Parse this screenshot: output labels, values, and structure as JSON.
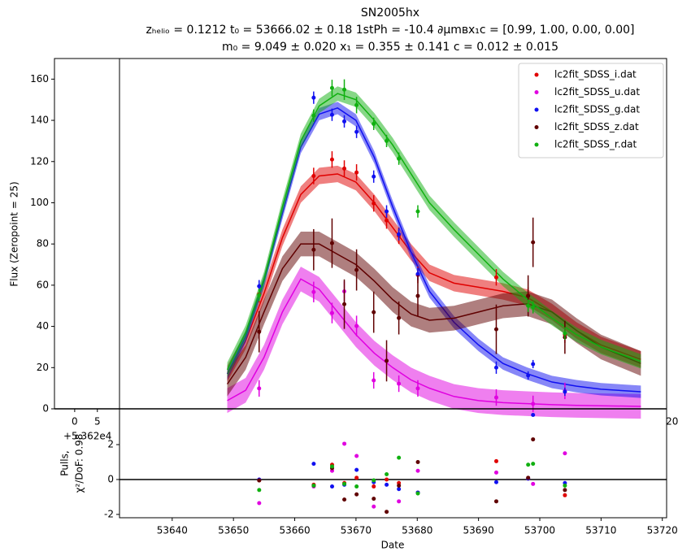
{
  "chart_data": [
    {
      "type": "errorbar",
      "title": "SN2005hx",
      "subtitle": [
        "zₕₑₗᵢₒ = 0.1212 t₀ = 53666.02 ± 0.18 1stPh = -10.4 ∂μmʙx₁c = [0.99,  1.00,  0.00,  0.00]",
        "m₀ = 9.049 ± 0.020 x₁ = 0.355 ± 0.141 c = 0.012 ± 0.015"
      ],
      "ylabel": "Flux (Zeropoint = 25)",
      "xlim": [
        53620.8,
        53720.7
      ],
      "ylim": [
        0,
        170
      ],
      "yticks": [
        0,
        20,
        40,
        60,
        80,
        100,
        120,
        140,
        160
      ],
      "xticks": [
        {
          "value": 53624.1,
          "label": "0"
        },
        {
          "value": 53627.8,
          "label": "5"
        },
        {
          "value": 53721.6,
          "label": "20"
        }
      ],
      "x_offset_label": "+5.362e4",
      "legend": "upper right",
      "model_x": [
        53649,
        53652,
        53655,
        53658,
        53661,
        53664,
        53667,
        53670,
        53673,
        53676,
        53679,
        53682,
        53686,
        53690,
        53694,
        53698,
        53702,
        53706,
        53710,
        53716.5
      ],
      "series": [
        {
          "name": "lc2fit_SDSS_i.dat",
          "color": "#e00000",
          "x": [
            53654.2,
            53663.1,
            53666.1,
            53668.1,
            53670.1,
            53672.9,
            53675.0,
            53677.0,
            53680.1,
            53692.9,
            53698.1,
            53704.1
          ],
          "values": [
            55.6,
            113,
            121,
            116.6,
            114.7,
            99.7,
            91.4,
            84,
            65,
            63.8,
            55,
            36
          ],
          "errors": [
            4,
            4,
            4,
            4,
            4,
            4,
            4,
            4,
            4,
            4,
            4,
            4
          ],
          "model": [
            17,
            33,
            56,
            83,
            104,
            113,
            114,
            110,
            100,
            88,
            76,
            66,
            61,
            59,
            57,
            54,
            47,
            38,
            31,
            24
          ],
          "band": 4
        },
        {
          "name": "lc2fit_SDSS_u.dat",
          "color": "#e000e0",
          "x": [
            53654.2,
            53663.1,
            53666.1,
            53668.1,
            53670.1,
            53672.9,
            53677.0,
            53680.1,
            53692.9,
            53698.9,
            53704.1
          ],
          "values": [
            9.9,
            56.7,
            46.5,
            57,
            40.2,
            13.8,
            12.2,
            9.9,
            5.5,
            2.4,
            8.7
          ],
          "errors": [
            4,
            5,
            5,
            5,
            5,
            4,
            4,
            4,
            4,
            4,
            4
          ],
          "model": [
            4,
            9,
            25,
            47,
            63,
            58,
            47,
            36,
            27,
            20,
            14,
            10,
            6,
            4,
            3,
            2.5,
            2,
            1.7,
            1.5,
            1.2
          ],
          "band": 6
        },
        {
          "name": "lc2fit_SDSS_g.dat",
          "color": "#1010f0",
          "x": [
            53654.2,
            53663.1,
            53666.1,
            53668.1,
            53670.1,
            53672.9,
            53675.0,
            53677.0,
            53680.1,
            53692.9,
            53698.1,
            53698.9,
            53704.1
          ],
          "values": [
            59.5,
            151,
            142.7,
            139.5,
            134.4,
            112.7,
            95.8,
            84.7,
            65.4,
            20,
            16.2,
            21.7,
            8.3
          ],
          "errors": [
            3,
            3,
            3,
            3,
            3,
            3,
            3,
            3,
            3,
            3,
            2,
            2,
            2
          ],
          "model": [
            17,
            35,
            62,
            95,
            127,
            143,
            146,
            140,
            122,
            98,
            76,
            57,
            42,
            31,
            22,
            17,
            13,
            11,
            9.5,
            8.3
          ],
          "band": 3
        },
        {
          "name": "lc2fit_SDSS_z.dat",
          "color": "#600000",
          "x": [
            53654.2,
            53663.1,
            53666.1,
            53668.1,
            53670.1,
            53672.9,
            53675.0,
            53677.0,
            53680.1,
            53692.9,
            53698.1,
            53698.9,
            53704.1
          ],
          "values": [
            37.4,
            77.2,
            80.4,
            50.8,
            67.4,
            46.9,
            23.3,
            44.1,
            54.8,
            38.6,
            54.8,
            80.8,
            34.7
          ],
          "errors": [
            10,
            10,
            12,
            12,
            10,
            10,
            10,
            8,
            10,
            12,
            10,
            12,
            8
          ],
          "model": [
            12,
            25,
            47,
            68,
            80,
            80,
            75,
            70,
            62,
            53,
            46,
            43,
            44,
            47,
            50,
            51,
            47,
            38,
            30,
            22
          ],
          "band": 6
        },
        {
          "name": "lc2fit_SDSS_r.dat",
          "color": "#10b010",
          "x": [
            53654.2,
            53663.1,
            53666.1,
            53668.1,
            53670.1,
            53672.9,
            53675.0,
            53677.0,
            53680.1,
            53698.1,
            53698.9,
            53704.1
          ],
          "values": [
            55.2,
            142.3,
            155.7,
            154.9,
            147.4,
            138.3,
            130,
            121.4,
            95.8,
            50,
            49.3,
            36.6
          ],
          "errors": [
            3,
            3,
            4,
            5,
            4,
            3,
            3,
            3,
            3,
            3,
            3,
            3
          ],
          "model": [
            19,
            37,
            63,
            98,
            130,
            147,
            153,
            150,
            140,
            128,
            114,
            100,
            87,
            75,
            63,
            53,
            44,
            36,
            30,
            23
          ],
          "band": 3.5
        }
      ]
    },
    {
      "type": "scatter",
      "xlabel": "Date",
      "ylabel": [
        "Pulls,",
        "χ²/DoF: 0.98"
      ],
      "xlim": [
        53631.4,
        53720.7
      ],
      "xticks": [
        53640,
        53650,
        53660,
        53670,
        53680,
        53690,
        53700,
        53710,
        53720
      ],
      "ylim": [
        -2.19,
        4.05
      ],
      "yticks": [
        -2,
        0,
        2
      ],
      "series": [
        {
          "color": "#e00000",
          "x": [
            53654.2,
            53663.1,
            53666.1,
            53668.1,
            53670.1,
            53672.9,
            53675.0,
            53677.0,
            53680.1,
            53692.9,
            53698.1,
            53704.1
          ],
          "values": [
            -0.05,
            -0.3,
            0.85,
            -0.2,
            0.1,
            -0.4,
            0.0,
            -0.2,
            -0.75,
            1.05,
            0.05,
            -0.9
          ]
        },
        {
          "color": "#e000e0",
          "x": [
            53654.2,
            53663.1,
            53666.1,
            53668.1,
            53670.1,
            53672.9,
            53677.0,
            53680.1,
            53692.9,
            53698.9,
            53704.1
          ],
          "values": [
            -1.35,
            -0.4,
            0.5,
            2.05,
            1.35,
            -1.55,
            -1.25,
            0.5,
            0.4,
            -0.25,
            1.5
          ]
        },
        {
          "color": "#1010f0",
          "x": [
            53654.2,
            53663.1,
            53666.1,
            53668.1,
            53670.1,
            53672.9,
            53675.0,
            53677.0,
            53680.1,
            53692.9,
            53698.1,
            53698.9,
            53704.1
          ],
          "values": [
            0.0,
            0.9,
            -0.4,
            -0.3,
            0.55,
            -0.15,
            -0.3,
            -0.55,
            -0.75,
            -0.15,
            0.05,
            3.7,
            -0.2
          ]
        },
        {
          "color": "#600000",
          "x": [
            53654.2,
            53663.1,
            53666.1,
            53668.1,
            53670.1,
            53672.9,
            53675.0,
            53677.0,
            53680.1,
            53692.9,
            53698.1,
            53698.9,
            53704.1
          ],
          "values": [
            -0.05,
            -0.35,
            0.65,
            -1.15,
            -0.85,
            -1.1,
            -1.85,
            -0.35,
            1.0,
            -1.25,
            0.1,
            2.3,
            -0.6
          ]
        },
        {
          "color": "#10b010",
          "x": [
            53654.2,
            53663.1,
            53666.1,
            53668.1,
            53670.1,
            53672.9,
            53675.0,
            53677.0,
            53680.1,
            53698.1,
            53698.9,
            53704.1
          ],
          "values": [
            -0.6,
            -0.35,
            0.75,
            -0.25,
            -0.4,
            -0.05,
            0.3,
            1.25,
            -0.8,
            0.85,
            0.9,
            -0.35
          ]
        }
      ]
    }
  ]
}
